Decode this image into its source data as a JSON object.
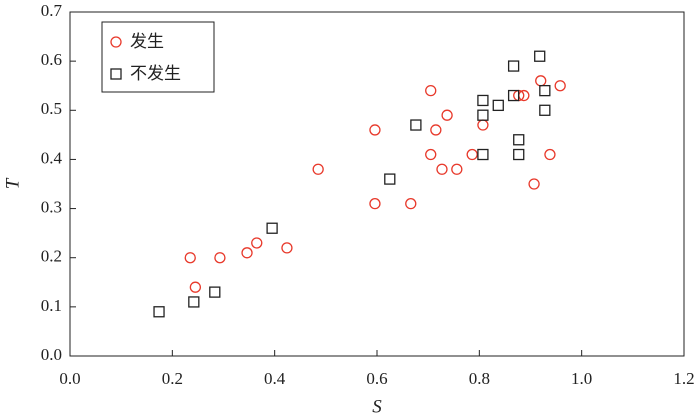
{
  "chart_data": {
    "type": "scatter",
    "x_label": "S",
    "y_label": "T",
    "xlim": [
      0,
      1.2
    ],
    "ylim": [
      0,
      0.7
    ],
    "xticks": [
      {
        "value": 0,
        "label": "0.0"
      },
      0.2,
      0.4,
      0.6,
      0.8,
      {
        "value": 1,
        "label": "1.0"
      },
      1.2
    ],
    "yticks": [
      {
        "value": 0,
        "label": "0.0"
      },
      0.1,
      0.2,
      0.3,
      0.4,
      0.5,
      0.6,
      0.7
    ],
    "grid": false,
    "legend": "upper left",
    "series": [
      {
        "name": "发生",
        "marker": "circle",
        "color": "#e8392b",
        "x": [
          0.235,
          0.245,
          0.293,
          0.346,
          0.365,
          0.424,
          0.485,
          0.596,
          0.596,
          0.666,
          0.705,
          0.705,
          0.715,
          0.737,
          0.727,
          0.756,
          0.786,
          0.807,
          0.877,
          0.887,
          0.92,
          0.958,
          0.907,
          0.938
        ],
        "values": [
          0.2,
          0.14,
          0.2,
          0.21,
          0.23,
          0.22,
          0.38,
          0.46,
          0.31,
          0.31,
          0.54,
          0.41,
          0.46,
          0.49,
          0.38,
          0.38,
          0.41,
          0.47,
          0.53,
          0.53,
          0.56,
          0.55,
          0.35,
          0.41
        ]
      },
      {
        "name": "不发生",
        "marker": "square",
        "color": "#222222",
        "x": [
          0.174,
          0.242,
          0.283,
          0.395,
          0.625,
          0.676,
          0.807,
          0.807,
          0.807,
          0.837,
          0.867,
          0.867,
          0.877,
          0.877,
          0.918,
          0.928,
          0.928
        ],
        "values": [
          0.09,
          0.11,
          0.13,
          0.26,
          0.36,
          0.47,
          0.41,
          0.49,
          0.52,
          0.51,
          0.59,
          0.53,
          0.44,
          0.41,
          0.61,
          0.54,
          0.5
        ]
      }
    ]
  }
}
